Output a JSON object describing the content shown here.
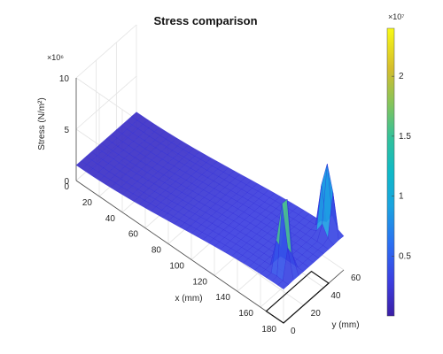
{
  "chart_data": {
    "type": "surface",
    "title": "Stress comparison",
    "xlabel": "x (mm)",
    "ylabel": "y (mm)",
    "zlabel": "Stress (N/m²)",
    "x_ticks": [
      "0",
      "20",
      "40",
      "60",
      "80",
      "100",
      "120",
      "140",
      "160",
      "180"
    ],
    "y_ticks": [
      "0",
      "20",
      "40",
      "60"
    ],
    "z_ticks": [
      "0",
      "5",
      "10"
    ],
    "z_exponent": "×10⁶",
    "xlim": [
      0,
      180
    ],
    "ylim": [
      0,
      60
    ],
    "zlim": [
      0,
      10000000
    ],
    "grid": true,
    "colormap": "parula",
    "colorbar": {
      "ticks": [
        "0.5",
        "1",
        "1.5",
        "2"
      ],
      "exponent": "×10⁷",
      "range": [
        0,
        24000000
      ],
      "placement": "right"
    },
    "surface": {
      "x_range_mm": [
        0,
        180
      ],
      "y_range_mm": [
        0,
        60
      ],
      "base_stress": 1500000,
      "concave_drop": 3000000,
      "edge_peaks": [
        {
          "x": 170,
          "y": 12,
          "stress": 22000000
        },
        {
          "x": 170,
          "y": 55,
          "stress": 22000000
        }
      ]
    }
  }
}
